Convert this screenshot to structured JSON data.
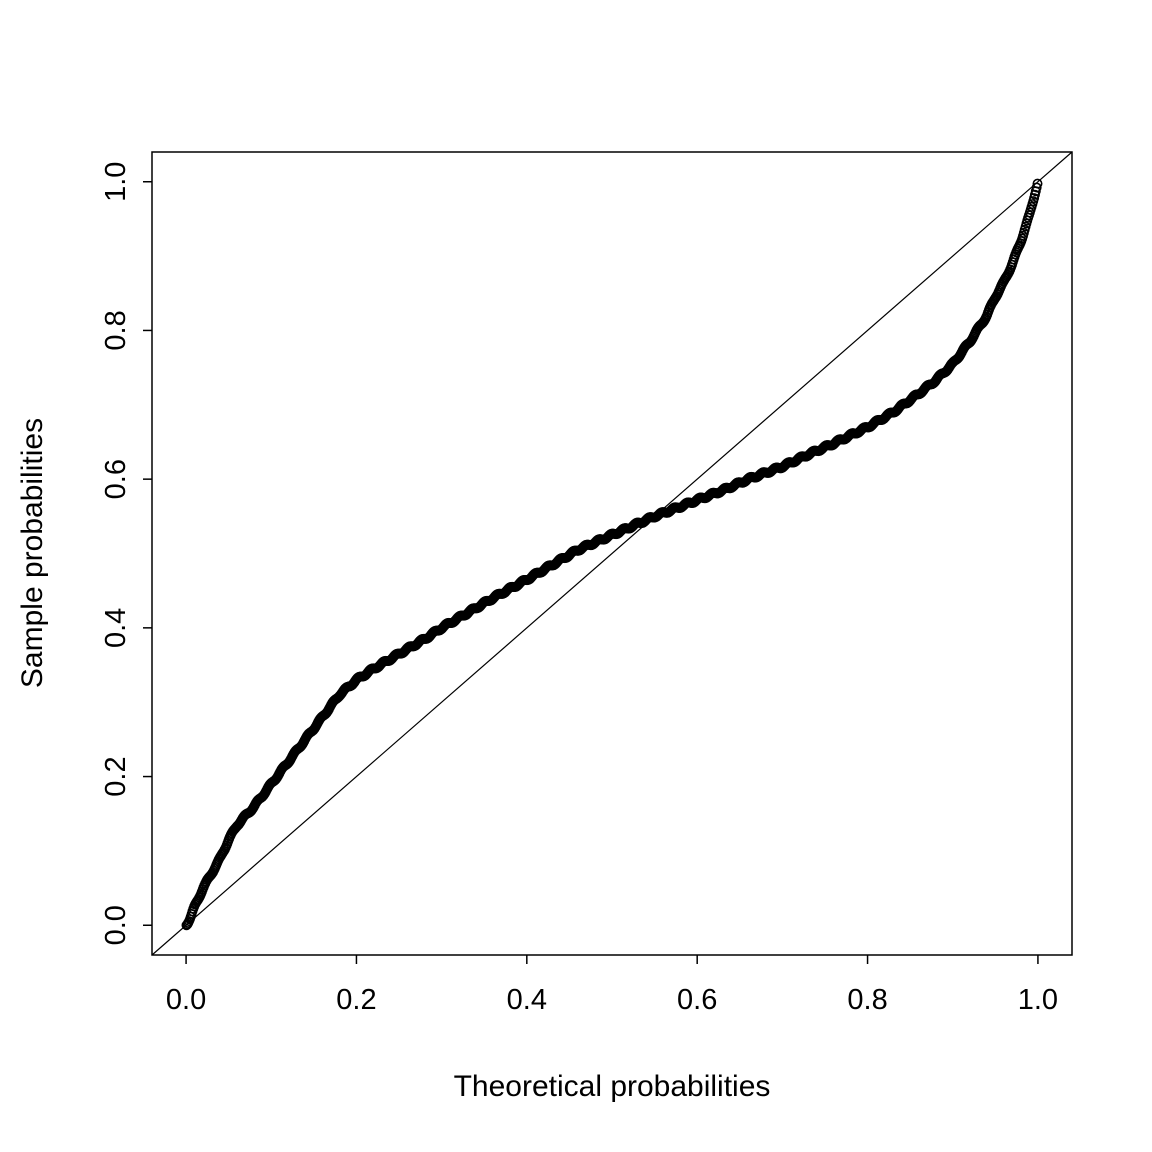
{
  "figure": {
    "background_color": "#ffffff",
    "foreground_color": "#000000"
  },
  "chart_data": {
    "type": "scatter",
    "title": "",
    "xlabel": "Theoretical probabilities",
    "ylabel": "Sample probabilities",
    "xlim": [
      0,
      1
    ],
    "ylim": [
      0,
      1
    ],
    "axis_expansion": 0.04,
    "x_ticks": [
      0.0,
      0.2,
      0.4,
      0.6,
      0.8,
      1.0
    ],
    "y_ticks": [
      0.0,
      0.2,
      0.4,
      0.6,
      0.8,
      1.0
    ],
    "grid": false,
    "legend": false,
    "marker": {
      "shape": "open-circle",
      "radius_px": 4.2,
      "color": "#000000"
    },
    "reference_line": {
      "intercept": 0,
      "slope": 1,
      "color": "#000000"
    },
    "n_points": 1000,
    "curve_anchors": {
      "x": [
        0.0,
        0.005,
        0.01,
        0.02,
        0.03,
        0.04,
        0.05,
        0.06,
        0.08,
        0.1,
        0.12,
        0.14,
        0.16,
        0.18,
        0.19,
        0.2,
        0.22,
        0.25,
        0.28,
        0.3,
        0.33,
        0.36,
        0.4,
        0.43,
        0.46,
        0.5,
        0.52,
        0.55,
        0.58,
        0.6,
        0.63,
        0.66,
        0.7,
        0.73,
        0.76,
        0.8,
        0.83,
        0.86,
        0.88,
        0.9,
        0.92,
        0.94,
        0.95,
        0.96,
        0.97,
        0.98,
        0.99,
        1.0
      ],
      "y": [
        0.0,
        0.01,
        0.025,
        0.05,
        0.07,
        0.09,
        0.115,
        0.135,
        0.16,
        0.19,
        0.22,
        0.25,
        0.28,
        0.31,
        0.32,
        0.33,
        0.345,
        0.365,
        0.385,
        0.4,
        0.42,
        0.44,
        0.465,
        0.485,
        0.505,
        0.525,
        0.535,
        0.55,
        0.563,
        0.572,
        0.585,
        0.6,
        0.617,
        0.633,
        0.648,
        0.67,
        0.69,
        0.715,
        0.733,
        0.755,
        0.785,
        0.82,
        0.845,
        0.865,
        0.89,
        0.92,
        0.955,
        1.0
      ]
    }
  }
}
